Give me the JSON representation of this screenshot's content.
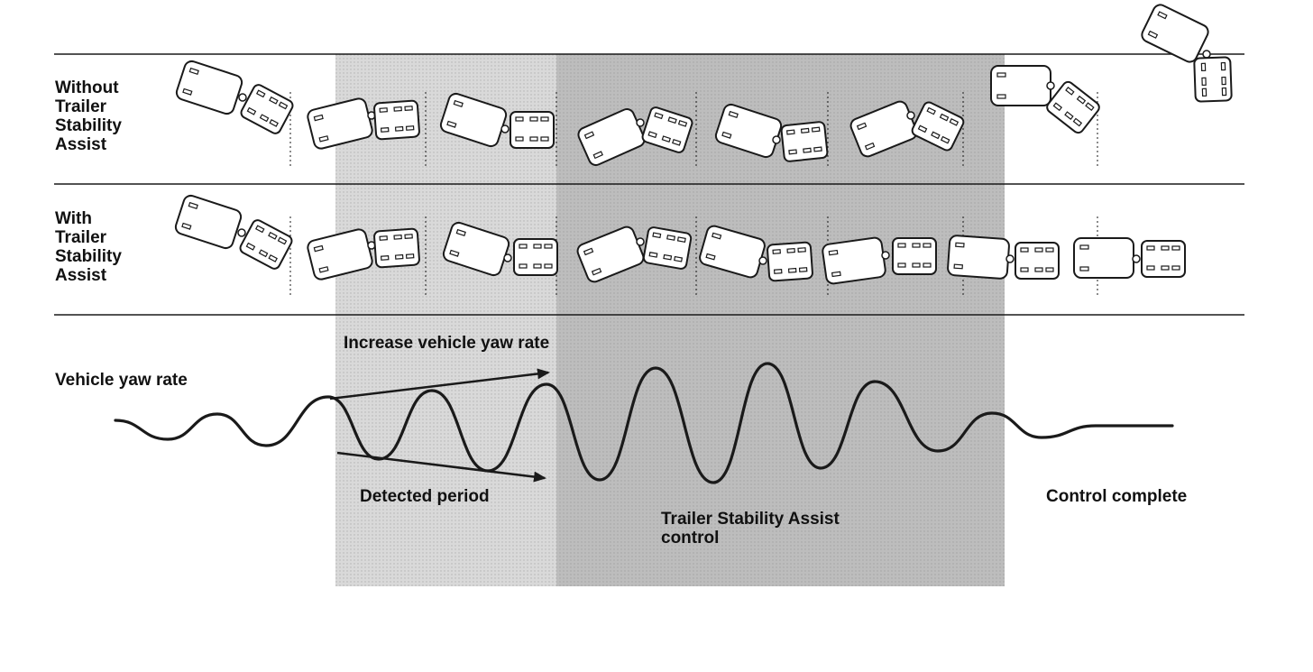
{
  "rows": {
    "without": {
      "label": "Without\nTrailer\nStability\nAssist"
    },
    "with": {
      "label": "With\nTrailer\nStability\nAssist"
    }
  },
  "graph": {
    "ylabel": "Vehicle yaw rate",
    "increase_label": "Increase vehicle yaw rate",
    "detected_label": "Detected period",
    "control_label": "Trailer Stability Assist\ncontrol",
    "complete_label": "Control complete"
  },
  "colors": {
    "line": "#1a1a1a",
    "detected_zone": "#d9d9d9",
    "control_zone": "#bdbdbd",
    "vehicle_fill": "#ffffff"
  }
}
